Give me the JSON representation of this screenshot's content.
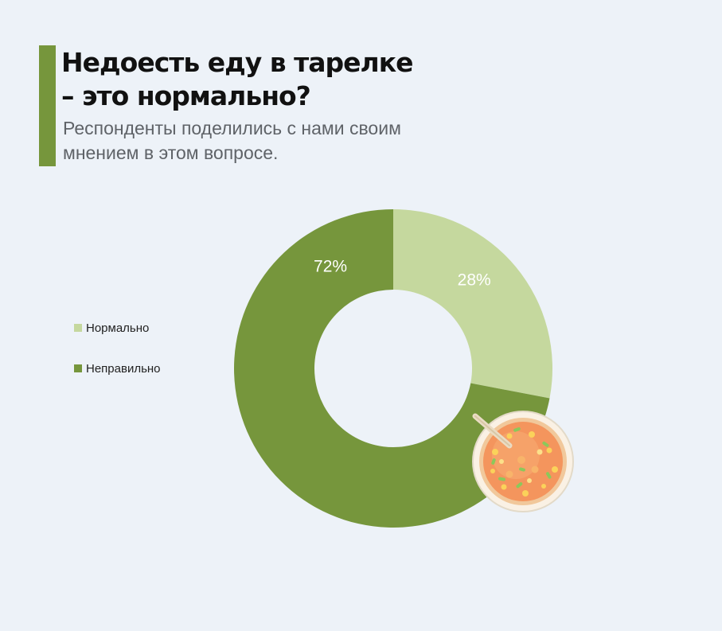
{
  "header": {
    "title_line1": "Недоесть еду в тарелке",
    "title_line2": "– это нормально?",
    "subtitle_line1": "Респонденты поделились с нами своим",
    "subtitle_line2": "мнением в этом вопросе."
  },
  "colors": {
    "accent": "#76963c",
    "normal": "#c5d89e",
    "wrong": "#76963c",
    "background": "#edf2f8"
  },
  "illustration": {
    "icon": "soup-bowl-icon"
  },
  "chart_data": {
    "type": "pie",
    "donut": true,
    "categories": [
      "Нормально",
      "Неправильно"
    ],
    "values": [
      28,
      72
    ],
    "value_labels": [
      "28%",
      "72%"
    ],
    "colors": [
      "#c5d89e",
      "#76963c"
    ],
    "legend_position": "left"
  }
}
